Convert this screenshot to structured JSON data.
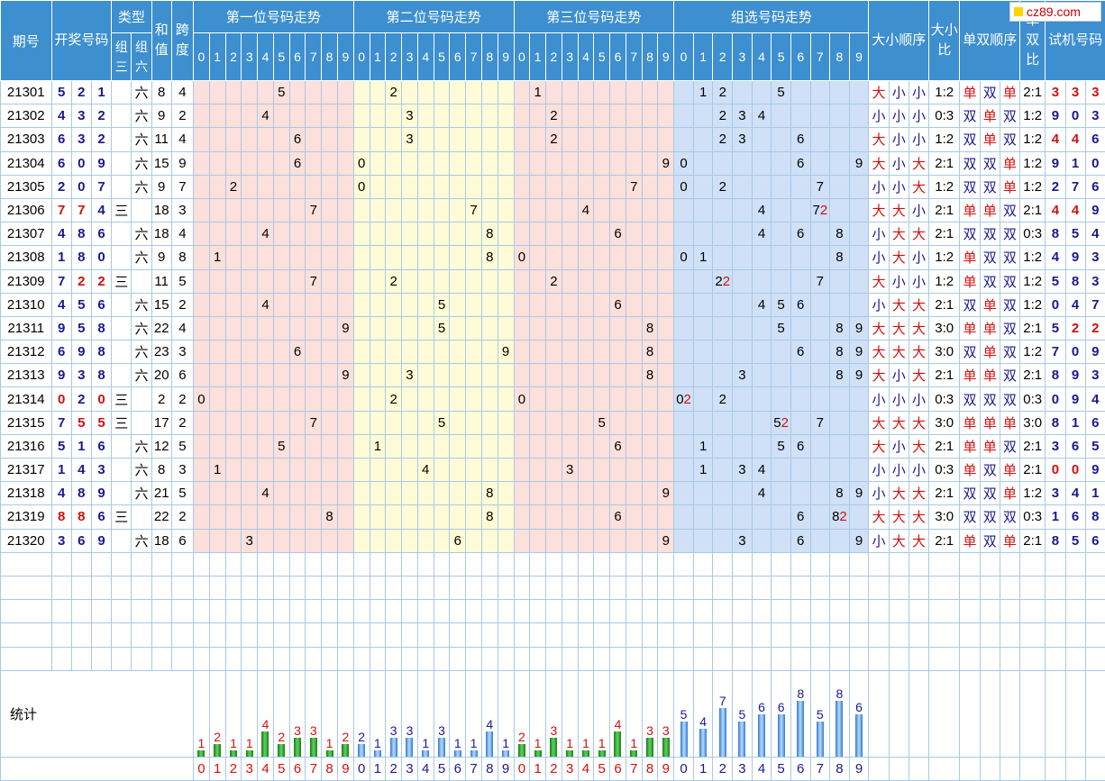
{
  "logo": {
    "text": "cz89.com"
  },
  "headers": {
    "issue": "期号",
    "draw": "开奖号码",
    "type": "类型",
    "type_g3": "组三",
    "type_g6": "组六",
    "sum": "和值",
    "span": "跨度",
    "pos1": "第一位号码走势",
    "pos2": "第二位号码走势",
    "pos3": "第三位号码走势",
    "group": "组选号码走势",
    "size_order": "大小顺序",
    "size_ratio": "大小比",
    "parity_order": "单双顺序",
    "parity_ratio": "单双比",
    "trial": "试机号码",
    "digits": [
      "0",
      "1",
      "2",
      "3",
      "4",
      "5",
      "6",
      "7",
      "8",
      "9"
    ]
  },
  "rows": [
    {
      "issue": "21301",
      "d": [
        5,
        2,
        1
      ],
      "red": [],
      "type": "六",
      "sum": 8,
      "span": 4,
      "size": [
        "大",
        "小",
        "小"
      ],
      "sr": "1:2",
      "par": [
        "单",
        "双",
        "单"
      ],
      "pr": "2:1",
      "trial": [
        3,
        3,
        3
      ],
      "trial_red": [
        0,
        1,
        2
      ]
    },
    {
      "issue": "21302",
      "d": [
        4,
        3,
        2
      ],
      "red": [],
      "type": "六",
      "sum": 9,
      "span": 2,
      "size": [
        "小",
        "小",
        "小"
      ],
      "sr": "0:3",
      "par": [
        "双",
        "单",
        "双"
      ],
      "pr": "1:2",
      "trial": [
        9,
        0,
        3
      ],
      "trial_red": []
    },
    {
      "issue": "21303",
      "d": [
        6,
        3,
        2
      ],
      "red": [],
      "type": "六",
      "sum": 11,
      "span": 4,
      "size": [
        "大",
        "小",
        "小"
      ],
      "sr": "1:2",
      "par": [
        "双",
        "单",
        "双"
      ],
      "pr": "1:2",
      "trial": [
        4,
        4,
        6
      ],
      "trial_red": [
        0,
        1
      ]
    },
    {
      "issue": "21304",
      "d": [
        6,
        0,
        9
      ],
      "red": [],
      "type": "六",
      "sum": 15,
      "span": 9,
      "size": [
        "大",
        "小",
        "大"
      ],
      "sr": "2:1",
      "par": [
        "双",
        "双",
        "单"
      ],
      "pr": "1:2",
      "trial": [
        9,
        1,
        0
      ],
      "trial_red": []
    },
    {
      "issue": "21305",
      "d": [
        2,
        0,
        7
      ],
      "red": [],
      "type": "六",
      "sum": 9,
      "span": 7,
      "size": [
        "小",
        "小",
        "大"
      ],
      "sr": "1:2",
      "par": [
        "双",
        "双",
        "单"
      ],
      "pr": "1:2",
      "trial": [
        2,
        7,
        6
      ],
      "trial_red": []
    },
    {
      "issue": "21306",
      "d": [
        7,
        7,
        4
      ],
      "red": [
        0,
        1
      ],
      "type": "三",
      "sum": 18,
      "span": 3,
      "size": [
        "大",
        "大",
        "小"
      ],
      "sr": "2:1",
      "par": [
        "单",
        "单",
        "双"
      ],
      "pr": "2:1",
      "trial": [
        4,
        4,
        9
      ],
      "trial_red": [
        0,
        1
      ]
    },
    {
      "issue": "21307",
      "d": [
        4,
        8,
        6
      ],
      "red": [],
      "type": "六",
      "sum": 18,
      "span": 4,
      "size": [
        "小",
        "大",
        "大"
      ],
      "sr": "2:1",
      "par": [
        "双",
        "双",
        "双"
      ],
      "pr": "0:3",
      "trial": [
        8,
        5,
        4
      ],
      "trial_red": []
    },
    {
      "issue": "21308",
      "d": [
        1,
        8,
        0
      ],
      "red": [],
      "type": "六",
      "sum": 9,
      "span": 8,
      "size": [
        "小",
        "大",
        "小"
      ],
      "sr": "1:2",
      "par": [
        "单",
        "双",
        "双"
      ],
      "pr": "1:2",
      "trial": [
        4,
        9,
        3
      ],
      "trial_red": []
    },
    {
      "issue": "21309",
      "d": [
        7,
        2,
        2
      ],
      "red": [
        1,
        2
      ],
      "type": "三",
      "sum": 11,
      "span": 5,
      "size": [
        "大",
        "小",
        "小"
      ],
      "sr": "1:2",
      "par": [
        "单",
        "双",
        "双"
      ],
      "pr": "1:2",
      "trial": [
        5,
        8,
        3
      ],
      "trial_red": []
    },
    {
      "issue": "21310",
      "d": [
        4,
        5,
        6
      ],
      "red": [],
      "type": "六",
      "sum": 15,
      "span": 2,
      "size": [
        "小",
        "大",
        "大"
      ],
      "sr": "2:1",
      "par": [
        "双",
        "单",
        "双"
      ],
      "pr": "1:2",
      "trial": [
        0,
        4,
        7
      ],
      "trial_red": []
    },
    {
      "issue": "21311",
      "d": [
        9,
        5,
        8
      ],
      "red": [],
      "type": "六",
      "sum": 22,
      "span": 4,
      "size": [
        "大",
        "大",
        "大"
      ],
      "sr": "3:0",
      "par": [
        "单",
        "单",
        "双"
      ],
      "pr": "2:1",
      "trial": [
        5,
        2,
        2
      ],
      "trial_red": [
        1,
        2
      ]
    },
    {
      "issue": "21312",
      "d": [
        6,
        9,
        8
      ],
      "red": [],
      "type": "六",
      "sum": 23,
      "span": 3,
      "size": [
        "大",
        "大",
        "大"
      ],
      "sr": "3:0",
      "par": [
        "双",
        "单",
        "双"
      ],
      "pr": "1:2",
      "trial": [
        7,
        0,
        9
      ],
      "trial_red": []
    },
    {
      "issue": "21313",
      "d": [
        9,
        3,
        8
      ],
      "red": [],
      "type": "六",
      "sum": 20,
      "span": 6,
      "size": [
        "大",
        "小",
        "大"
      ],
      "sr": "2:1",
      "par": [
        "单",
        "单",
        "双"
      ],
      "pr": "2:1",
      "trial": [
        8,
        9,
        3
      ],
      "trial_red": []
    },
    {
      "issue": "21314",
      "d": [
        0,
        2,
        0
      ],
      "red": [
        0,
        2
      ],
      "type": "三",
      "sum": 2,
      "span": 2,
      "size": [
        "小",
        "小",
        "小"
      ],
      "sr": "0:3",
      "par": [
        "双",
        "双",
        "双"
      ],
      "pr": "0:3",
      "trial": [
        0,
        9,
        4
      ],
      "trial_red": []
    },
    {
      "issue": "21315",
      "d": [
        7,
        5,
        5
      ],
      "red": [
        1,
        2
      ],
      "type": "三",
      "sum": 17,
      "span": 2,
      "size": [
        "大",
        "大",
        "大"
      ],
      "sr": "3:0",
      "par": [
        "单",
        "单",
        "单"
      ],
      "pr": "3:0",
      "trial": [
        8,
        1,
        6
      ],
      "trial_red": []
    },
    {
      "issue": "21316",
      "d": [
        5,
        1,
        6
      ],
      "red": [],
      "type": "六",
      "sum": 12,
      "span": 5,
      "size": [
        "大",
        "小",
        "大"
      ],
      "sr": "2:1",
      "par": [
        "单",
        "单",
        "双"
      ],
      "pr": "2:1",
      "trial": [
        3,
        6,
        5
      ],
      "trial_red": []
    },
    {
      "issue": "21317",
      "d": [
        1,
        4,
        3
      ],
      "red": [],
      "type": "六",
      "sum": 8,
      "span": 3,
      "size": [
        "小",
        "小",
        "小"
      ],
      "sr": "0:3",
      "par": [
        "单",
        "双",
        "单"
      ],
      "pr": "2:1",
      "trial": [
        0,
        0,
        9
      ],
      "trial_red": [
        0,
        1
      ]
    },
    {
      "issue": "21318",
      "d": [
        4,
        8,
        9
      ],
      "red": [],
      "type": "六",
      "sum": 21,
      "span": 5,
      "size": [
        "小",
        "大",
        "大"
      ],
      "sr": "2:1",
      "par": [
        "双",
        "双",
        "单"
      ],
      "pr": "1:2",
      "trial": [
        3,
        4,
        1
      ],
      "trial_red": []
    },
    {
      "issue": "21319",
      "d": [
        8,
        8,
        6
      ],
      "red": [
        0,
        1
      ],
      "type": "三",
      "sum": 22,
      "span": 2,
      "size": [
        "大",
        "大",
        "大"
      ],
      "sr": "3:0",
      "par": [
        "双",
        "双",
        "双"
      ],
      "pr": "0:3",
      "trial": [
        1,
        6,
        8
      ],
      "trial_red": []
    },
    {
      "issue": "21320",
      "d": [
        3,
        6,
        9
      ],
      "red": [],
      "type": "六",
      "sum": 18,
      "span": 6,
      "size": [
        "小",
        "大",
        "大"
      ],
      "sr": "2:1",
      "par": [
        "单",
        "双",
        "单"
      ],
      "pr": "2:1",
      "trial": [
        8,
        5,
        6
      ],
      "trial_red": []
    }
  ],
  "stats": {
    "label": "统计",
    "pos1": [
      1,
      2,
      1,
      1,
      4,
      2,
      3,
      3,
      1,
      2
    ],
    "pos2": [
      2,
      1,
      3,
      3,
      1,
      3,
      1,
      1,
      4,
      1
    ],
    "pos3": [
      2,
      1,
      3,
      1,
      1,
      1,
      4,
      1,
      3,
      3
    ],
    "group": [
      5,
      4,
      7,
      5,
      6,
      6,
      8,
      5,
      8,
      6
    ]
  }
}
